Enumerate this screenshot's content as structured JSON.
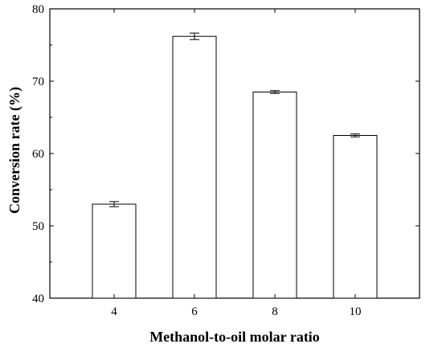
{
  "chart_data": {
    "type": "bar",
    "categories": [
      "4",
      "6",
      "8",
      "10"
    ],
    "values": [
      53.0,
      76.2,
      68.5,
      62.5
    ],
    "errors": [
      0.35,
      0.45,
      0.2,
      0.2
    ],
    "title": "",
    "xlabel": "Methanol-to-oil molar ratio",
    "ylabel": "Conversion rate (%)",
    "ylim": [
      40,
      80
    ],
    "yticks": [
      "40",
      "50",
      "60",
      "70",
      "80"
    ],
    "grid": false,
    "legend": "none",
    "colors": {
      "bar_fill": "#ffffff",
      "bar_stroke": "#000000"
    }
  }
}
